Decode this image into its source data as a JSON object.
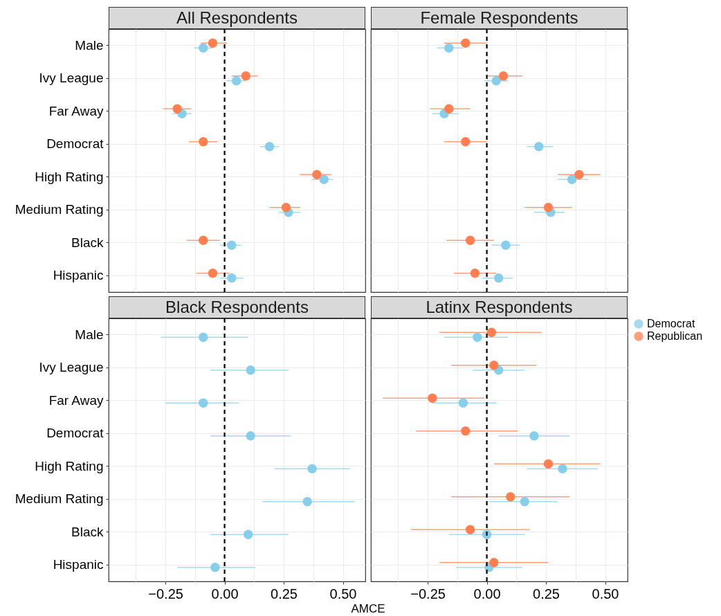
{
  "chart_data": [
    {
      "type": "scatter",
      "title": "All Respondents",
      "orientation": "horizontal",
      "categories": [
        "Male",
        "Ivy League",
        "Far Away",
        "Democrat",
        "High Rating",
        "Medium Rating",
        "Black",
        "Hispanic"
      ],
      "xlim": [
        -0.49,
        0.595
      ],
      "xticks": [
        {
          "value": -0.375,
          "label": null
        },
        {
          "value": -0.25,
          "label": null
        },
        {
          "value": -0.125,
          "label": null
        },
        {
          "value": 0,
          "label": null
        },
        {
          "value": 0.125,
          "label": null
        },
        {
          "value": 0.25,
          "label": null
        },
        {
          "value": 0.375,
          "label": null
        },
        {
          "value": 0.5,
          "label": null
        }
      ],
      "tick_labels": "y",
      "grid": true,
      "marker": "circle",
      "ref_lines": [
        {
          "axis": "x",
          "value": 0,
          "color": "#000000",
          "line_style": "dashed"
        }
      ],
      "series": [
        {
          "name": "Democrat",
          "color": "#87ceeb",
          "values": [
            -0.09,
            0.05,
            -0.18,
            0.19,
            0.42,
            0.27,
            0.03,
            0.03
          ],
          "errors": [
            [
              -0.13,
              -0.05
            ],
            [
              0.01,
              0.09
            ],
            [
              -0.22,
              -0.14
            ],
            [
              0.15,
              0.23
            ],
            [
              0.37,
              0.46
            ],
            [
              0.23,
              0.32
            ],
            [
              -0.02,
              0.07
            ],
            [
              -0.02,
              0.08
            ]
          ]
        },
        {
          "name": "Republican",
          "color": "#ff7f50",
          "values": [
            -0.05,
            0.09,
            -0.2,
            -0.09,
            0.39,
            0.26,
            -0.09,
            -0.05
          ],
          "errors": [
            [
              -0.1,
              0.01
            ],
            [
              0.03,
              0.14
            ],
            [
              -0.26,
              -0.14
            ],
            [
              -0.15,
              -0.03
            ],
            [
              0.32,
              0.45
            ],
            [
              0.19,
              0.32
            ],
            [
              -0.16,
              -0.02
            ],
            [
              -0.12,
              0.02
            ]
          ]
        }
      ]
    },
    {
      "type": "scatter",
      "title": "Female Respondents",
      "orientation": "horizontal",
      "categories": [
        null,
        null,
        null,
        null,
        null,
        null,
        null,
        null
      ],
      "xlim": [
        -0.49,
        0.595
      ],
      "xticks": [
        {
          "value": -0.375,
          "label": null
        },
        {
          "value": -0.25,
          "label": null
        },
        {
          "value": -0.125,
          "label": null
        },
        {
          "value": 0,
          "label": null
        },
        {
          "value": 0.125,
          "label": null
        },
        {
          "value": 0.25,
          "label": null
        },
        {
          "value": 0.375,
          "label": null
        },
        {
          "value": 0.5,
          "label": null
        }
      ],
      "tick_labels": false,
      "grid": true,
      "marker": "circle",
      "ref_lines": [
        {
          "axis": "x",
          "value": 0,
          "color": "#000000",
          "line_style": "dashed"
        }
      ],
      "series": [
        {
          "name": "Democrat",
          "color": "#87ceeb",
          "values": [
            -0.16,
            0.04,
            -0.18,
            0.22,
            0.36,
            0.27,
            0.08,
            0.05
          ],
          "errors": [
            [
              -0.21,
              -0.1
            ],
            [
              -0.01,
              0.09
            ],
            [
              -0.23,
              -0.12
            ],
            [
              0.17,
              0.28
            ],
            [
              0.3,
              0.43
            ],
            [
              0.2,
              0.33
            ],
            [
              0.02,
              0.14
            ],
            [
              -0.02,
              0.11
            ]
          ]
        },
        {
          "name": "Republican",
          "color": "#ff7f50",
          "values": [
            -0.09,
            0.07,
            -0.16,
            -0.09,
            0.39,
            0.26,
            -0.07,
            -0.05
          ],
          "errors": [
            [
              -0.18,
              0
            ],
            [
              0,
              0.15
            ],
            [
              -0.24,
              -0.07
            ],
            [
              -0.18,
              0
            ],
            [
              0.3,
              0.48
            ],
            [
              0.16,
              0.36
            ],
            [
              -0.17,
              0.03
            ],
            [
              -0.14,
              0.04
            ]
          ]
        }
      ]
    },
    {
      "type": "scatter",
      "title": "Black Respondents",
      "xlabel": "AMCE",
      "orientation": "horizontal",
      "categories": [
        "Male",
        "Ivy League",
        "Far Away",
        "Democrat",
        "High Rating",
        "Medium Rating",
        "Black",
        "Hispanic"
      ],
      "xlim": [
        -0.49,
        0.595
      ],
      "xticks": [
        {
          "value": -0.375,
          "label": null
        },
        {
          "value": -0.25,
          "label": "−0.25"
        },
        {
          "value": -0.125,
          "label": null
        },
        {
          "value": 0,
          "label": "0.00"
        },
        {
          "value": 0.125,
          "label": null
        },
        {
          "value": 0.25,
          "label": "0.25"
        },
        {
          "value": 0.375,
          "label": null
        },
        {
          "value": 0.5,
          "label": "0.50"
        }
      ],
      "grid": true,
      "marker": "circle",
      "ref_lines": [
        {
          "axis": "x",
          "value": 0,
          "color": "#000000",
          "line_style": "dashed"
        }
      ],
      "series": [
        {
          "name": "Democrat",
          "color": "#87ceeb",
          "values": [
            -0.09,
            0.11,
            -0.09,
            0.11,
            0.37,
            0.35,
            0.1,
            -0.04
          ],
          "errors": [
            [
              -0.27,
              0.1
            ],
            [
              -0.06,
              0.27
            ],
            [
              -0.25,
              0.06
            ],
            [
              -0.06,
              0.28
            ],
            [
              0.21,
              0.53
            ],
            [
              0.16,
              0.55
            ],
            [
              -0.06,
              0.27
            ],
            [
              -0.2,
              0.13
            ]
          ]
        }
      ]
    },
    {
      "type": "scatter",
      "title": "Latinx Respondents",
      "orientation": "horizontal",
      "categories": [
        null,
        null,
        null,
        null,
        null,
        null,
        null,
        null
      ],
      "xlim": [
        -0.49,
        0.595
      ],
      "xticks": [
        {
          "value": -0.375,
          "label": null
        },
        {
          "value": -0.25,
          "label": "−0.25"
        },
        {
          "value": -0.125,
          "label": null
        },
        {
          "value": 0,
          "label": "0.00"
        },
        {
          "value": 0.125,
          "label": null
        },
        {
          "value": 0.25,
          "label": "0.25"
        },
        {
          "value": 0.375,
          "label": null
        },
        {
          "value": 0.5,
          "label": "0.50"
        }
      ],
      "tick_labels": "x",
      "grid": true,
      "marker": "circle",
      "legend": "right",
      "ref_lines": [
        {
          "axis": "x",
          "value": 0,
          "color": "#000000",
          "line_style": "dashed"
        }
      ],
      "series": [
        {
          "name": "Democrat",
          "color": "#87ceeb",
          "values": [
            -0.04,
            0.05,
            -0.1,
            0.2,
            0.32,
            0.16,
            0,
            0.01
          ],
          "errors": [
            [
              -0.18,
              0.09
            ],
            [
              -0.06,
              0.16
            ],
            [
              -0.23,
              0.04
            ],
            [
              0.05,
              0.35
            ],
            [
              0.17,
              0.47
            ],
            [
              0.01,
              0.3
            ],
            [
              -0.16,
              0.16
            ],
            [
              -0.13,
              0.15
            ]
          ]
        },
        {
          "name": "Republican",
          "color": "#ff7f50",
          "values": [
            0.02,
            0.03,
            -0.23,
            -0.09,
            0.26,
            0.1,
            -0.07,
            0.03
          ],
          "errors": [
            [
              -0.2,
              0.23
            ],
            [
              -0.15,
              0.21
            ],
            [
              -0.44,
              -0.01
            ],
            [
              -0.3,
              0.13
            ],
            [
              0.03,
              0.48
            ],
            [
              -0.15,
              0.35
            ],
            [
              -0.32,
              0.18
            ],
            [
              -0.2,
              0.26
            ]
          ]
        }
      ]
    }
  ]
}
